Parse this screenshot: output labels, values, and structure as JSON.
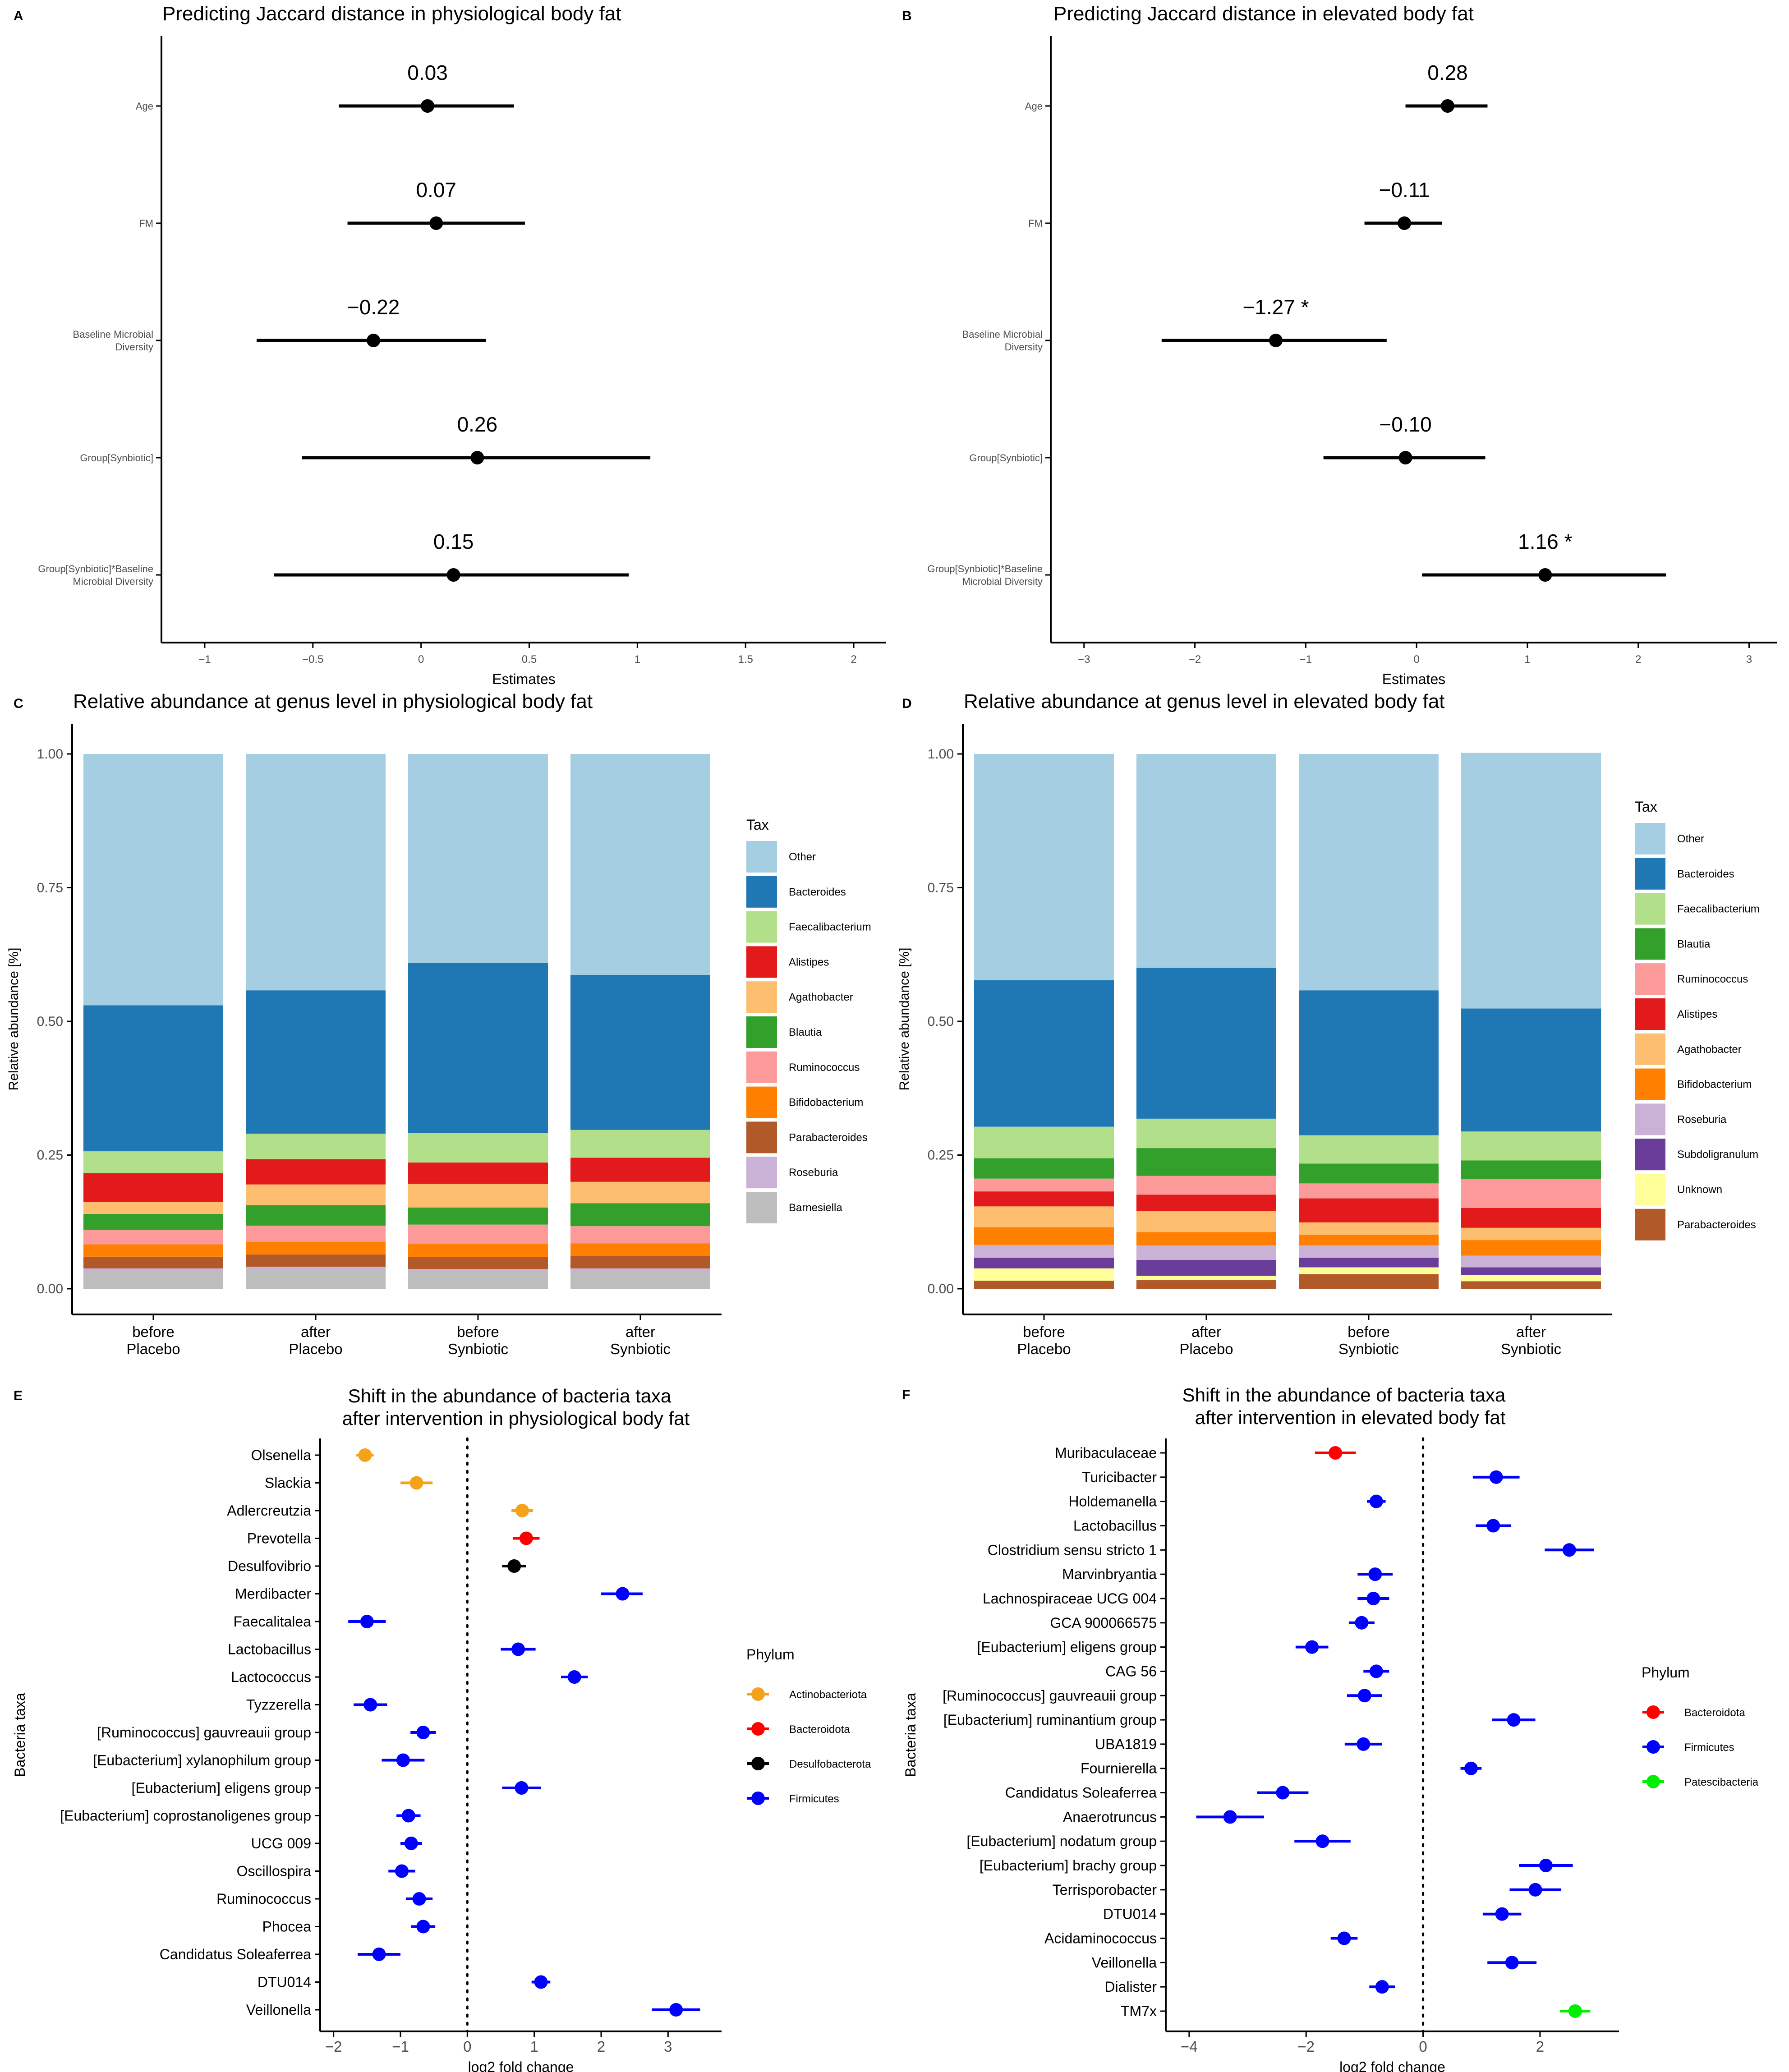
{
  "chart_data": [
    {
      "type": "forest",
      "panel_label": "A",
      "title": "Predicting Jaccard distance in physiological body fat",
      "xlabel": "Estimates",
      "xlim": [
        -1.2,
        2.15
      ],
      "xticks": [
        -1,
        -0.5,
        0,
        0.5,
        1,
        1.5,
        2
      ],
      "xtick_labels": [
        "−1",
        "−0.5",
        "0",
        "0.5",
        "1",
        "1.5",
        "2"
      ],
      "terms": [
        {
          "label": [
            "Age"
          ],
          "estimate": 0.03,
          "ci": [
            -0.38,
            0.43
          ],
          "annotation": "0.03"
        },
        {
          "label": [
            "FM"
          ],
          "estimate": 0.07,
          "ci": [
            -0.34,
            0.48
          ],
          "annotation": "0.07"
        },
        {
          "label": [
            "Baseline Microbial",
            "Diversity"
          ],
          "estimate": -0.22,
          "ci": [
            -0.76,
            0.3
          ],
          "annotation": "−0.22"
        },
        {
          "label": [
            "Group[Synbiotic]"
          ],
          "estimate": 0.26,
          "ci": [
            -0.55,
            1.06
          ],
          "annotation": "0.26"
        },
        {
          "label": [
            "Group[Synbiotic]*Baseline",
            "Microbial Diversity"
          ],
          "estimate": 0.15,
          "ci": [
            -0.68,
            0.96
          ],
          "annotation": "0.15"
        }
      ]
    },
    {
      "type": "forest",
      "panel_label": "B",
      "title": "Predicting Jaccard distance in elevated body fat",
      "xlabel": "Estimates",
      "xlim": [
        -3.3,
        3.25
      ],
      "xticks": [
        -3,
        -2,
        -1,
        0,
        1,
        2,
        3
      ],
      "xtick_labels": [
        "−3",
        "−2",
        "−1",
        "0",
        "1",
        "2",
        "3"
      ],
      "terms": [
        {
          "label": [
            "Age"
          ],
          "estimate": 0.28,
          "ci": [
            -0.1,
            0.64
          ],
          "annotation": "0.28"
        },
        {
          "label": [
            "FM"
          ],
          "estimate": -0.11,
          "ci": [
            -0.47,
            0.23
          ],
          "annotation": "−0.11"
        },
        {
          "label": [
            "Baseline Microbial",
            "Diversity"
          ],
          "estimate": -1.27,
          "ci": [
            -2.3,
            -0.27
          ],
          "annotation": "−1.27 *"
        },
        {
          "label": [
            "Group[Synbiotic]"
          ],
          "estimate": -0.1,
          "ci": [
            -0.84,
            0.62
          ],
          "annotation": "−0.10"
        },
        {
          "label": [
            "Group[Synbiotic]*Baseline",
            "Microbial Diversity"
          ],
          "estimate": 1.16,
          "ci": [
            0.05,
            2.25
          ],
          "annotation": "1.16 *"
        }
      ]
    },
    {
      "type": "stacked-bar",
      "panel_label": "C",
      "title": "Relative abundance at genus level in physiological body fat",
      "ylabel": "Relative abundance [%]",
      "ylim": [
        0,
        1
      ],
      "yticks": [
        0,
        0.25,
        0.5,
        0.75,
        1
      ],
      "ytick_labels": [
        "0.00",
        "0.25",
        "0.50",
        "0.75",
        "1.00"
      ],
      "categories": [
        [
          "before",
          "Placebo"
        ],
        [
          "after",
          "Placebo"
        ],
        [
          "before",
          "Synbiotic"
        ],
        [
          "after",
          "Synbiotic"
        ]
      ],
      "legend_title": "Tax",
      "series": [
        {
          "name": "Barnesiella",
          "color": "#bdbdbd",
          "values": [
            0.032,
            0.035,
            0.032,
            0.032
          ]
        },
        {
          "name": "Roseburia",
          "color": "#cab2d6",
          "values": [
            0.006,
            0.006,
            0.005,
            0.006
          ]
        },
        {
          "name": "Parabacteroides",
          "color": "#b15928",
          "values": [
            0.022,
            0.023,
            0.022,
            0.023
          ]
        },
        {
          "name": "Bifidobacterium",
          "color": "#ff7f00",
          "values": [
            0.023,
            0.024,
            0.025,
            0.024
          ]
        },
        {
          "name": "Ruminococcus",
          "color": "#fb9a99",
          "values": [
            0.027,
            0.03,
            0.036,
            0.032
          ]
        },
        {
          "name": "Blautia",
          "color": "#33a02c",
          "values": [
            0.03,
            0.038,
            0.032,
            0.043
          ]
        },
        {
          "name": "Agathobacter",
          "color": "#fdbf6f",
          "values": [
            0.022,
            0.039,
            0.044,
            0.04
          ]
        },
        {
          "name": "Alistipes",
          "color": "#e31a1c",
          "values": [
            0.054,
            0.047,
            0.04,
            0.045
          ]
        },
        {
          "name": "Faecalibacterium",
          "color": "#b2df8a",
          "values": [
            0.041,
            0.048,
            0.055,
            0.052
          ]
        },
        {
          "name": "Bacteroides",
          "color": "#1f78b4",
          "values": [
            0.273,
            0.268,
            0.318,
            0.29
          ]
        },
        {
          "name": "Other",
          "color": "#a6cee3",
          "values": [
            0.47,
            0.442,
            0.391,
            0.413
          ]
        }
      ],
      "legend_order": [
        "Other",
        "Bacteroides",
        "Faecalibacterium",
        "Alistipes",
        "Agathobacter",
        "Blautia",
        "Ruminococcus",
        "Bifidobacterium",
        "Parabacteroides",
        "Roseburia",
        "Barnesiella"
      ]
    },
    {
      "type": "stacked-bar",
      "panel_label": "D",
      "title": "Relative abundance at genus level in elevated body fat",
      "ylabel": "Relative abundance [%]",
      "ylim": [
        0,
        1
      ],
      "yticks": [
        0,
        0.25,
        0.5,
        0.75,
        1
      ],
      "ytick_labels": [
        "0.00",
        "0.25",
        "0.50",
        "0.75",
        "1.00"
      ],
      "categories": [
        [
          "before",
          "Placebo"
        ],
        [
          "after",
          "Placebo"
        ],
        [
          "before",
          "Synbiotic"
        ],
        [
          "after",
          "Synbiotic"
        ]
      ],
      "legend_title": "Tax",
      "series": [
        {
          "name": "Parabacteroides",
          "color": "#b15928",
          "values": [
            0.015,
            0.016,
            0.027,
            0.014
          ]
        },
        {
          "name": "Unknown",
          "color": "#ffff99",
          "values": [
            0.023,
            0.008,
            0.013,
            0.012
          ]
        },
        {
          "name": "Subdoligranulum",
          "color": "#6a3d9a",
          "values": [
            0.02,
            0.03,
            0.018,
            0.014
          ]
        },
        {
          "name": "Roseburia",
          "color": "#cab2d6",
          "values": [
            0.024,
            0.027,
            0.023,
            0.022
          ]
        },
        {
          "name": "Bifidobacterium",
          "color": "#ff7f00",
          "values": [
            0.033,
            0.025,
            0.02,
            0.029
          ]
        },
        {
          "name": "Agathobacter",
          "color": "#fdbf6f",
          "values": [
            0.039,
            0.039,
            0.023,
            0.023
          ]
        },
        {
          "name": "Alistipes",
          "color": "#e31a1c",
          "values": [
            0.028,
            0.031,
            0.045,
            0.037
          ]
        },
        {
          "name": "Ruminococcus",
          "color": "#fb9a99",
          "values": [
            0.024,
            0.035,
            0.028,
            0.054
          ]
        },
        {
          "name": "Blautia",
          "color": "#33a02c",
          "values": [
            0.038,
            0.052,
            0.037,
            0.035
          ]
        },
        {
          "name": "Faecalibacterium",
          "color": "#b2df8a",
          "values": [
            0.059,
            0.055,
            0.053,
            0.054
          ]
        },
        {
          "name": "Bacteroides",
          "color": "#1f78b4",
          "values": [
            0.274,
            0.282,
            0.271,
            0.23
          ]
        },
        {
          "name": "Other",
          "color": "#a6cee3",
          "values": [
            0.423,
            0.4,
            0.442,
            0.478
          ]
        }
      ],
      "legend_order": [
        "Other",
        "Bacteroides",
        "Faecalibacterium",
        "Blautia",
        "Ruminococcus",
        "Alistipes",
        "Agathobacter",
        "Bifidobacterium",
        "Roseburia",
        "Subdoligranulum",
        "Unknown",
        "Parabacteroides"
      ]
    },
    {
      "type": "dot-interval",
      "panel_label": "E",
      "title": [
        "Shift in the abundance of bacteria taxa",
        "after intervention in physiological body fat"
      ],
      "xlabel": "log2 fold change",
      "ylabel": "Bacteria taxa",
      "xlim": [
        -2.2,
        3.8
      ],
      "xticks": [
        -2,
        -1,
        0,
        1,
        2,
        3
      ],
      "xtick_labels": [
        "−2",
        "−1",
        "0",
        "1",
        "2",
        "3"
      ],
      "legend_title": "Phylum",
      "phyla": [
        {
          "name": "Actinobacteriota",
          "color": "#f5a21b"
        },
        {
          "name": "Bacteroidota",
          "color": "#ff0000"
        },
        {
          "name": "Desulfobacterota",
          "color": "#000000"
        },
        {
          "name": "Firmicutes",
          "color": "#0000ff"
        }
      ],
      "taxa": [
        {
          "name": "Olsenella",
          "phylum": "Actinobacteriota",
          "value": -1.53,
          "ci": [
            -1.66,
            -1.4
          ]
        },
        {
          "name": "Slackia",
          "phylum": "Actinobacteriota",
          "value": -0.76,
          "ci": [
            -1.0,
            -0.52
          ]
        },
        {
          "name": "Adlercreutzia",
          "phylum": "Actinobacteriota",
          "value": 0.82,
          "ci": [
            0.66,
            0.98
          ]
        },
        {
          "name": "Prevotella",
          "phylum": "Bacteroidota",
          "value": 0.88,
          "ci": [
            0.68,
            1.08
          ]
        },
        {
          "name": "Desulfovibrio",
          "phylum": "Desulfobacterota",
          "value": 0.7,
          "ci": [
            0.52,
            0.88
          ]
        },
        {
          "name": "Merdibacter",
          "phylum": "Firmicutes",
          "value": 2.32,
          "ci": [
            2.0,
            2.62
          ]
        },
        {
          "name": "Faecalitalea",
          "phylum": "Firmicutes",
          "value": -1.5,
          "ci": [
            -1.78,
            -1.22
          ]
        },
        {
          "name": "Lactobacillus",
          "phylum": "Firmicutes",
          "value": 0.76,
          "ci": [
            0.5,
            1.02
          ]
        },
        {
          "name": "Lactococcus",
          "phylum": "Firmicutes",
          "value": 1.6,
          "ci": [
            1.4,
            1.8
          ]
        },
        {
          "name": "Tyzzerella",
          "phylum": "Firmicutes",
          "value": -1.45,
          "ci": [
            -1.7,
            -1.2
          ]
        },
        {
          "name": "[Ruminococcus] gauvreauii group",
          "phylum": "Firmicutes",
          "value": -0.66,
          "ci": [
            -0.85,
            -0.47
          ]
        },
        {
          "name": "[Eubacterium] xylanophilum group",
          "phylum": "Firmicutes",
          "value": -0.96,
          "ci": [
            -1.28,
            -0.64
          ]
        },
        {
          "name": "[Eubacterium] eligens group",
          "phylum": "Firmicutes",
          "value": 0.81,
          "ci": [
            0.52,
            1.1
          ]
        },
        {
          "name": "[Eubacterium] coprostanoligenes group",
          "phylum": "Firmicutes",
          "value": -0.88,
          "ci": [
            -1.06,
            -0.7
          ]
        },
        {
          "name": "UCG 009",
          "phylum": "Firmicutes",
          "value": -0.84,
          "ci": [
            -1.0,
            -0.68
          ]
        },
        {
          "name": "Oscillospira",
          "phylum": "Firmicutes",
          "value": -0.98,
          "ci": [
            -1.18,
            -0.78
          ]
        },
        {
          "name": "Ruminococcus",
          "phylum": "Firmicutes",
          "value": -0.72,
          "ci": [
            -0.92,
            -0.52
          ]
        },
        {
          "name": "Phocea",
          "phylum": "Firmicutes",
          "value": -0.66,
          "ci": [
            -0.84,
            -0.48
          ]
        },
        {
          "name": "Candidatus Soleaferrea",
          "phylum": "Firmicutes",
          "value": -1.32,
          "ci": [
            -1.64,
            -1.0
          ]
        },
        {
          "name": "DTU014",
          "phylum": "Firmicutes",
          "value": 1.1,
          "ci": [
            0.96,
            1.24
          ]
        },
        {
          "name": "Veillonella",
          "phylum": "Firmicutes",
          "value": 3.12,
          "ci": [
            2.76,
            3.48
          ]
        }
      ]
    },
    {
      "type": "dot-interval",
      "panel_label": "F",
      "title": [
        "Shift in the abundance of bacteria taxa",
        "after intervention in elevated body fat"
      ],
      "xlabel": "log2 fold change",
      "ylabel": "Bacteria taxa",
      "xlim": [
        -4.4,
        3.35
      ],
      "xticks": [
        -4,
        -2,
        0,
        2
      ],
      "xtick_labels": [
        "−4",
        "−2",
        "0",
        "2"
      ],
      "legend_title": "Phylum",
      "phyla": [
        {
          "name": "Bacteroidota",
          "color": "#ff0000"
        },
        {
          "name": "Firmicutes",
          "color": "#0000ff"
        },
        {
          "name": "Patescibacteria",
          "color": "#00ee00"
        }
      ],
      "taxa": [
        {
          "name": "Muribaculaceae",
          "phylum": "Bacteroidota",
          "value": -1.5,
          "ci": [
            -1.85,
            -1.15
          ]
        },
        {
          "name": "Turicibacter",
          "phylum": "Firmicutes",
          "value": 1.25,
          "ci": [
            0.85,
            1.65
          ]
        },
        {
          "name": "Holdemanella",
          "phylum": "Firmicutes",
          "value": -0.8,
          "ci": [
            -0.96,
            -0.64
          ]
        },
        {
          "name": "Lactobacillus",
          "phylum": "Firmicutes",
          "value": 1.2,
          "ci": [
            0.9,
            1.5
          ]
        },
        {
          "name": "Clostridium sensu stricto 1",
          "phylum": "Firmicutes",
          "value": 2.5,
          "ci": [
            2.08,
            2.92
          ]
        },
        {
          "name": "Marvinbryantia",
          "phylum": "Firmicutes",
          "value": -0.82,
          "ci": [
            -1.12,
            -0.52
          ]
        },
        {
          "name": "Lachnospiraceae UCG 004",
          "phylum": "Firmicutes",
          "value": -0.85,
          "ci": [
            -1.12,
            -0.58
          ]
        },
        {
          "name": "GCA 900066575",
          "phylum": "Firmicutes",
          "value": -1.05,
          "ci": [
            -1.27,
            -0.83
          ]
        },
        {
          "name": "[Eubacterium] eligens group",
          "phylum": "Firmicutes",
          "value": -1.9,
          "ci": [
            -2.18,
            -1.62
          ]
        },
        {
          "name": "CAG 56",
          "phylum": "Firmicutes",
          "value": -0.8,
          "ci": [
            -1.02,
            -0.58
          ]
        },
        {
          "name": "[Ruminococcus] gauvreauii group",
          "phylum": "Firmicutes",
          "value": -1.0,
          "ci": [
            -1.3,
            -0.7
          ]
        },
        {
          "name": "[Eubacterium] ruminantium group",
          "phylum": "Firmicutes",
          "value": 1.55,
          "ci": [
            1.18,
            1.92
          ]
        },
        {
          "name": "UBA1819",
          "phylum": "Firmicutes",
          "value": -1.02,
          "ci": [
            -1.34,
            -0.7
          ]
        },
        {
          "name": "Fournierella",
          "phylum": "Firmicutes",
          "value": 0.82,
          "ci": [
            0.64,
            1.0
          ]
        },
        {
          "name": "Candidatus Soleaferrea",
          "phylum": "Firmicutes",
          "value": -2.4,
          "ci": [
            -2.84,
            -1.96
          ]
        },
        {
          "name": "Anaerotruncus",
          "phylum": "Firmicutes",
          "value": -3.3,
          "ci": [
            -3.88,
            -2.72
          ]
        },
        {
          "name": "[Eubacterium] nodatum group",
          "phylum": "Firmicutes",
          "value": -1.72,
          "ci": [
            -2.2,
            -1.24
          ]
        },
        {
          "name": "[Eubacterium] brachy group",
          "phylum": "Firmicutes",
          "value": 2.1,
          "ci": [
            1.64,
            2.56
          ]
        },
        {
          "name": "Terrisporobacter",
          "phylum": "Firmicutes",
          "value": 1.92,
          "ci": [
            1.48,
            2.36
          ]
        },
        {
          "name": "DTU014",
          "phylum": "Firmicutes",
          "value": 1.35,
          "ci": [
            1.02,
            1.68
          ]
        },
        {
          "name": "Acidaminococcus",
          "phylum": "Firmicutes",
          "value": -1.35,
          "ci": [
            -1.58,
            -1.12
          ]
        },
        {
          "name": "Veillonella",
          "phylum": "Firmicutes",
          "value": 1.52,
          "ci": [
            1.1,
            1.94
          ]
        },
        {
          "name": "Dialister",
          "phylum": "Firmicutes",
          "value": -0.7,
          "ci": [
            -0.92,
            -0.48
          ]
        },
        {
          "name": "TM7x",
          "phylum": "Patescibacteria",
          "value": 2.6,
          "ci": [
            2.34,
            2.86
          ]
        }
      ]
    }
  ]
}
